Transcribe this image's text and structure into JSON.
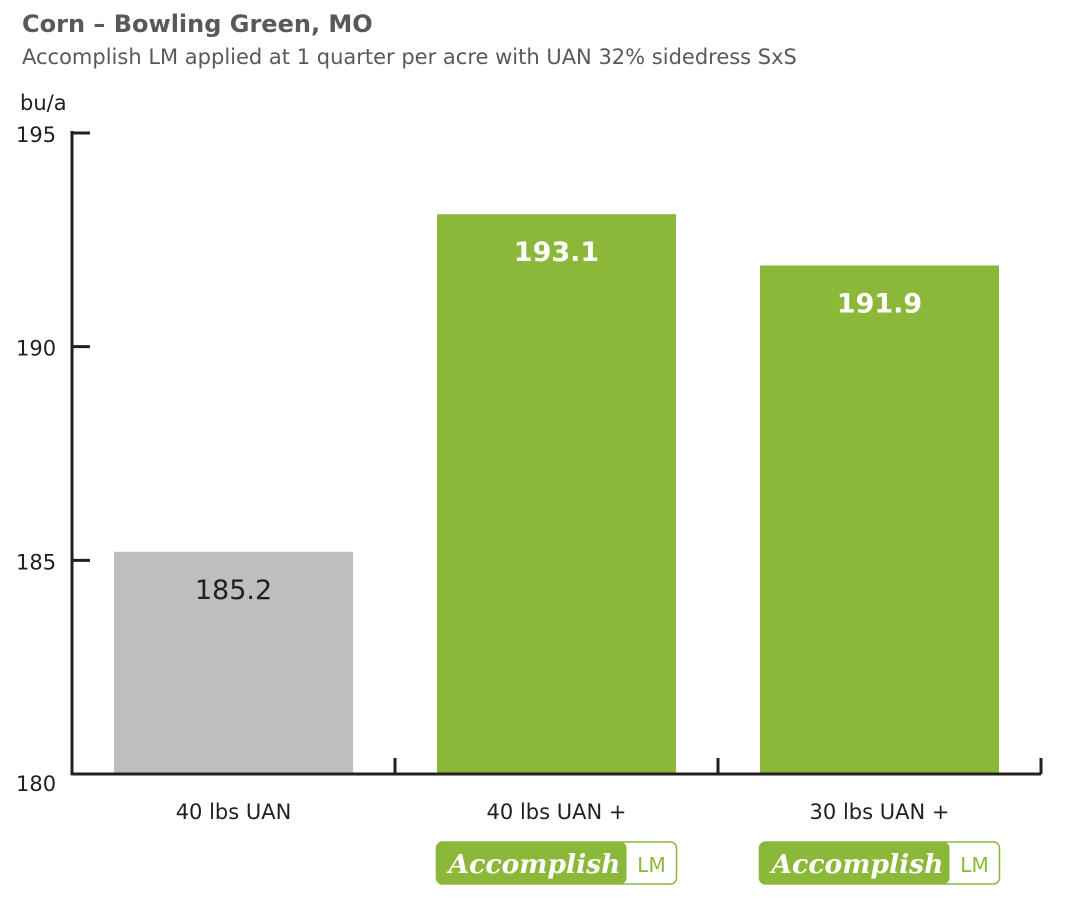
{
  "chart_data": {
    "type": "bar",
    "title": "Corn – Bowling Green, MO",
    "subtitle": "Accomplish LM applied at 1 quarter per acre with UAN 32% sidedress SxS",
    "ylabel": "bu/a",
    "xlabel": "",
    "ylim": [
      180,
      195
    ],
    "yticks": [
      180,
      185,
      190,
      195
    ],
    "grid": false,
    "categories": [
      "40 lbs UAN",
      "40 lbs UAN +",
      "30 lbs UAN +"
    ],
    "category_badges": [
      "",
      "Accomplish LM",
      "Accomplish LM"
    ],
    "values": [
      185.2,
      193.1,
      191.9
    ],
    "value_labels": [
      "185.2",
      "193.1",
      "191.9"
    ],
    "bar_colors": [
      "#bcbec0",
      "#8cb83a",
      "#8cb83a"
    ],
    "label_colors": [
      "#231f20",
      "#ffffff",
      "#ffffff"
    ]
  },
  "badge": {
    "brand_script": "Accomplish",
    "brand_suffix": "LM",
    "color": "#8cb83a"
  }
}
